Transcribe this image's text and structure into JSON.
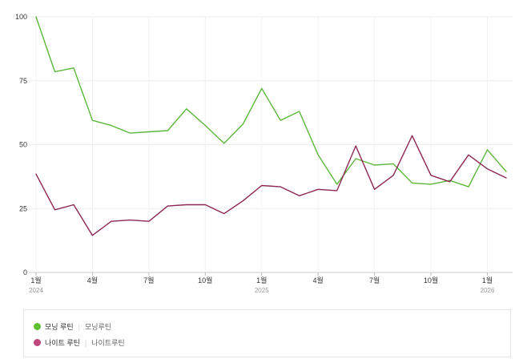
{
  "chart_data": {
    "type": "line",
    "title": "",
    "xlabel": "",
    "ylabel": "",
    "ylim": [
      0,
      100
    ],
    "y_ticks": [
      "0",
      "25",
      "50",
      "75",
      "100"
    ],
    "y_tick_values": [
      0,
      25,
      50,
      75,
      100
    ],
    "x_ticks": [
      {
        "index": 0,
        "label": "1월",
        "year": "2024"
      },
      {
        "index": 3,
        "label": "4월",
        "year": ""
      },
      {
        "index": 6,
        "label": "7월",
        "year": ""
      },
      {
        "index": 9,
        "label": "10월",
        "year": ""
      },
      {
        "index": 12,
        "label": "1월",
        "year": "2025"
      },
      {
        "index": 15,
        "label": "4월",
        "year": ""
      },
      {
        "index": 18,
        "label": "7월",
        "year": ""
      },
      {
        "index": 21,
        "label": "10월",
        "year": ""
      },
      {
        "index": 24,
        "label": "1월",
        "year": "2026"
      }
    ],
    "categories": [
      "2024-01",
      "2024-02",
      "2024-03",
      "2024-04",
      "2024-05",
      "2024-06",
      "2024-07",
      "2024-08",
      "2024-09",
      "2024-10",
      "2024-11",
      "2024-12",
      "2025-01",
      "2025-02",
      "2025-03",
      "2025-04",
      "2025-05",
      "2025-06",
      "2025-07",
      "2025-08",
      "2025-09",
      "2025-10",
      "2025-11",
      "2025-12",
      "2026-01",
      "2026-02"
    ],
    "series": [
      {
        "name": "모닝 루틴",
        "keyword": "모닝루틴",
        "color": "#5cb83c",
        "values": [
          100,
          78.5,
          80,
          59.5,
          57.5,
          54.5,
          55,
          55.5,
          64,
          57.5,
          50.5,
          58,
          72,
          59.5,
          63,
          46,
          34.5,
          44.5,
          42,
          42.5,
          35,
          34.5,
          36,
          33.5,
          48,
          39.5
        ]
      },
      {
        "name": "나이트 루틴",
        "keyword": "나이트루틴",
        "color": "#8c2753",
        "values": [
          38.5,
          24.5,
          26.5,
          14.5,
          20,
          20.5,
          20,
          26,
          26.5,
          26.5,
          23,
          28,
          34,
          33.5,
          30,
          32.5,
          32,
          49.5,
          32.5,
          38,
          53.5,
          38,
          35.5,
          46,
          40.5,
          37
        ]
      }
    ],
    "legend_placement": "bottom",
    "legend_dot_colors": [
      "#5fc02f",
      "#c2467e"
    ]
  }
}
